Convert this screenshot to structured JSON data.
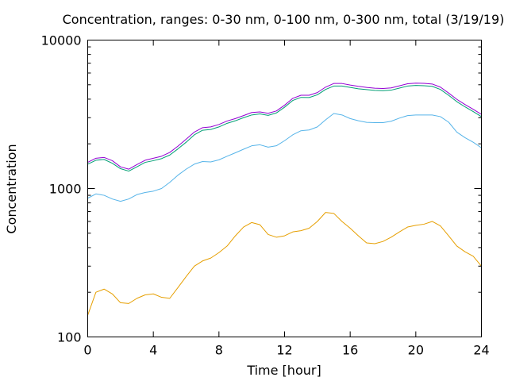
{
  "chart_data": {
    "type": "line",
    "title": "Concentration, ranges: 0-30 nm, 0-100 nm, 0-300 nm, total (3/19/19)",
    "xlabel": "Time [hour]",
    "ylabel": "Concentration",
    "xlim": [
      0,
      24
    ],
    "ylim": [
      100,
      10000
    ],
    "yscale": "log",
    "grid": false,
    "legend": "none",
    "xticks": [
      0,
      4,
      8,
      12,
      16,
      20,
      24
    ],
    "xtick_labels": [
      "0",
      "4",
      "8",
      "12",
      "16",
      "20",
      "24"
    ],
    "yticks": [
      100,
      1000,
      10000
    ],
    "ytick_labels": [
      "100",
      "1000",
      "10000"
    ],
    "x": [
      0,
      0.5,
      1,
      1.5,
      2,
      2.5,
      3,
      3.5,
      4,
      4.5,
      5,
      5.5,
      6,
      6.5,
      7,
      7.5,
      8,
      8.5,
      9,
      9.5,
      10,
      10.5,
      11,
      11.5,
      12,
      12.5,
      13,
      13.5,
      14,
      14.5,
      15,
      15.5,
      16,
      16.5,
      17,
      17.5,
      18,
      18.5,
      19,
      19.5,
      20,
      20.5,
      21,
      21.5,
      22,
      22.5,
      23,
      23.5,
      24
    ],
    "series": [
      {
        "color": "#e69f00",
        "values": [
          140,
          200,
          210,
          195,
          170,
          168,
          182,
          192,
          195,
          185,
          182,
          215,
          255,
          300,
          325,
          340,
          370,
          410,
          480,
          550,
          590,
          570,
          490,
          470,
          480,
          510,
          520,
          540,
          600,
          690,
          680,
          600,
          540,
          480,
          430,
          425,
          440,
          470,
          510,
          550,
          565,
          575,
          600,
          560,
          480,
          410,
          375,
          350,
          300
        ]
      },
      {
        "color": "#56b4e9",
        "values": [
          860,
          920,
          900,
          850,
          820,
          850,
          910,
          940,
          960,
          1000,
          1100,
          1230,
          1350,
          1460,
          1520,
          1510,
          1560,
          1650,
          1740,
          1840,
          1940,
          1970,
          1900,
          1940,
          2100,
          2300,
          2450,
          2480,
          2600,
          2900,
          3200,
          3130,
          2960,
          2860,
          2790,
          2780,
          2780,
          2840,
          2980,
          3100,
          3130,
          3130,
          3130,
          3050,
          2800,
          2400,
          2200,
          2050,
          1880
        ]
      },
      {
        "color": "#009e73",
        "values": [
          1460,
          1550,
          1570,
          1480,
          1360,
          1310,
          1400,
          1500,
          1540,
          1590,
          1680,
          1850,
          2050,
          2300,
          2470,
          2500,
          2600,
          2750,
          2860,
          3000,
          3130,
          3180,
          3110,
          3230,
          3530,
          3920,
          4110,
          4100,
          4280,
          4650,
          4900,
          4900,
          4800,
          4700,
          4640,
          4580,
          4560,
          4600,
          4750,
          4900,
          4950,
          4930,
          4880,
          4650,
          4250,
          3850,
          3550,
          3300,
          3050
        ]
      },
      {
        "color": "#9400d3",
        "values": [
          1500,
          1600,
          1620,
          1540,
          1400,
          1350,
          1450,
          1550,
          1600,
          1650,
          1750,
          1930,
          2150,
          2400,
          2570,
          2600,
          2700,
          2850,
          2960,
          3100,
          3250,
          3280,
          3210,
          3330,
          3640,
          4050,
          4250,
          4250,
          4430,
          4820,
          5100,
          5100,
          4980,
          4880,
          4800,
          4740,
          4720,
          4760,
          4920,
          5080,
          5130,
          5110,
          5060,
          4820,
          4400,
          3990,
          3680,
          3420,
          3160
        ]
      }
    ]
  }
}
